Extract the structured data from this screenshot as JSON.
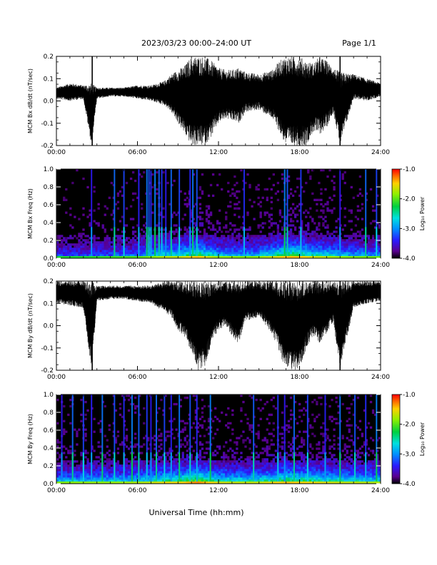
{
  "header": {
    "title": "2023/03/23  00:00–24:00 UT",
    "page": "Page 1/1"
  },
  "footer": {
    "xlabel": "Universal Time (hh:mm)"
  },
  "colors": {
    "background": "#ffffff",
    "axis": "#000000",
    "trace": "#000000",
    "spectrogram_bg": "#000000"
  },
  "chart_data": [
    {
      "type": "line",
      "ylabel": "MCM Bx dB/dt (nT/sec)",
      "xlim": [
        0,
        24
      ],
      "ylim": [
        -0.2,
        0.2
      ],
      "yticks": [
        "-0.2",
        "-0.1",
        "0.0",
        "0.1",
        "0.2"
      ],
      "xticks": [
        "00:00",
        "06:00",
        "12:00",
        "18:00",
        "24:00"
      ],
      "envelope": {
        "x": [
          0,
          1,
          2,
          2.6,
          3,
          4,
          5,
          6,
          7,
          8,
          8.5,
          9,
          9.5,
          10,
          10.5,
          11,
          11.5,
          12,
          12.5,
          13,
          13.5,
          14,
          15,
          16,
          16.5,
          17,
          17.5,
          18,
          18.5,
          19,
          19.5,
          20,
          20.5,
          21,
          22,
          23,
          24
        ],
        "upper": [
          0.06,
          0.08,
          0.07,
          0.08,
          0.06,
          0.06,
          0.06,
          0.07,
          0.07,
          0.09,
          0.12,
          0.14,
          0.16,
          0.2,
          0.2,
          0.2,
          0.18,
          0.15,
          0.14,
          0.14,
          0.15,
          0.13,
          0.12,
          0.14,
          0.18,
          0.2,
          0.2,
          0.2,
          0.18,
          0.17,
          0.2,
          0.18,
          0.15,
          0.13,
          0.12,
          0.1,
          0.08
        ],
        "lower": [
          0.01,
          0.0,
          0.01,
          -0.2,
          0.01,
          0.02,
          0.02,
          0.01,
          0.0,
          -0.02,
          -0.05,
          -0.1,
          -0.15,
          -0.2,
          -0.2,
          -0.2,
          -0.16,
          -0.1,
          -0.08,
          -0.09,
          -0.1,
          -0.05,
          -0.04,
          -0.08,
          -0.14,
          -0.2,
          -0.2,
          -0.2,
          -0.2,
          -0.14,
          -0.15,
          -0.12,
          -0.05,
          -0.2,
          0.01,
          0.0,
          0.02
        ]
      },
      "spikes": [
        {
          "x": 2.65,
          "y": [
            -0.2,
            0.2
          ]
        },
        {
          "x": 21.0,
          "y": [
            -0.2,
            0.2
          ]
        }
      ]
    },
    {
      "type": "heatmap",
      "ylabel": "MCM Bx Freq (Hz)",
      "xlim": [
        0,
        24
      ],
      "ylim": [
        0,
        1.0
      ],
      "yticks": [
        "0.0",
        "0.2",
        "0.4",
        "0.6",
        "0.8",
        "1.0"
      ],
      "xticks": [
        "00:00",
        "06:00",
        "12:00",
        "18:00",
        "24:00"
      ],
      "colorbar": {
        "label": "Log₁₀ Power",
        "ticks": [
          "-1.0",
          "-2.0",
          "-3.0",
          "-4.0"
        ],
        "range": [
          -4.0,
          -1.0
        ]
      },
      "activity": {
        "x": [
          0,
          2,
          4,
          6,
          7,
          8,
          9,
          10,
          10.5,
          11,
          12,
          13,
          14,
          15,
          16,
          17,
          18,
          19,
          20,
          21,
          22,
          24
        ],
        "level": [
          0.35,
          0.35,
          0.4,
          0.45,
          0.55,
          0.7,
          0.7,
          0.85,
          0.9,
          0.8,
          0.6,
          0.6,
          0.55,
          0.6,
          0.75,
          0.9,
          0.9,
          0.75,
          0.7,
          0.6,
          0.55,
          0.5
        ]
      },
      "streaks": [
        2.6,
        4.3,
        5.0,
        6.1,
        6.7,
        6.85,
        7.0,
        7.3,
        7.6,
        7.8,
        8.1,
        8.5,
        9.1,
        9.9,
        10.1,
        10.4,
        13.9,
        16.9,
        17.1,
        18.1,
        21.0,
        22.9,
        23.7
      ]
    },
    {
      "type": "line",
      "ylabel": "MCM By dB/dt (nT/sec)",
      "xlim": [
        0,
        24
      ],
      "ylim": [
        -0.2,
        0.2
      ],
      "yticks": [
        "-0.2",
        "-0.1",
        "0.0",
        "0.1",
        "0.2"
      ],
      "xticks": [
        "00:00",
        "06:00",
        "12:00",
        "18:00",
        "24:00"
      ],
      "envelope": {
        "x": [
          0,
          1,
          2,
          2.6,
          3,
          4,
          5,
          6,
          7,
          8,
          8.5,
          9,
          9.5,
          10,
          10.5,
          11,
          11.5,
          12,
          12.5,
          13,
          13.5,
          14,
          15,
          16,
          16.5,
          17,
          17.5,
          18,
          18.5,
          19,
          19.5,
          20,
          20.5,
          21,
          22,
          23,
          24
        ],
        "upper": [
          0.2,
          0.2,
          0.2,
          0.2,
          0.18,
          0.18,
          0.18,
          0.18,
          0.18,
          0.2,
          0.2,
          0.2,
          0.2,
          0.2,
          0.2,
          0.2,
          0.2,
          0.2,
          0.2,
          0.2,
          0.2,
          0.2,
          0.2,
          0.2,
          0.2,
          0.2,
          0.2,
          0.2,
          0.2,
          0.2,
          0.2,
          0.2,
          0.2,
          0.2,
          0.2,
          0.2,
          0.2
        ],
        "lower": [
          0.1,
          0.09,
          0.08,
          -0.2,
          0.11,
          0.12,
          0.12,
          0.11,
          0.1,
          0.06,
          0.04,
          -0.02,
          -0.05,
          -0.12,
          -0.2,
          -0.18,
          -0.08,
          -0.02,
          0.0,
          -0.05,
          -0.08,
          0.02,
          0.04,
          -0.04,
          -0.12,
          -0.2,
          -0.2,
          -0.2,
          -0.1,
          -0.05,
          -0.08,
          -0.04,
          0.02,
          -0.2,
          0.08,
          0.1,
          0.11
        ]
      },
      "spikes": [
        {
          "x": 2.65,
          "y": [
            -0.2,
            0.2
          ]
        },
        {
          "x": 21.0,
          "y": [
            -0.2,
            0.2
          ]
        }
      ]
    },
    {
      "type": "heatmap",
      "ylabel": "MCM By Freq (Hz)",
      "xlim": [
        0,
        24
      ],
      "ylim": [
        0,
        1.0
      ],
      "yticks": [
        "0.0",
        "0.2",
        "0.4",
        "0.6",
        "0.8",
        "1.0"
      ],
      "xticks": [
        "00:00",
        "06:00",
        "12:00",
        "18:00",
        "24:00"
      ],
      "colorbar": {
        "label": "Log₁₀ Power",
        "ticks": [
          "-1.0",
          "-2.0",
          "-3.0",
          "-4.0"
        ],
        "range": [
          -4.0,
          -1.0
        ]
      },
      "activity": {
        "x": [
          0,
          2,
          4,
          6,
          7,
          8,
          9,
          10,
          10.5,
          11,
          12,
          13,
          14,
          15,
          16,
          17,
          18,
          19,
          20,
          21,
          22,
          24
        ],
        "level": [
          0.55,
          0.6,
          0.6,
          0.65,
          0.7,
          0.8,
          0.8,
          0.95,
          1.0,
          0.9,
          0.75,
          0.7,
          0.7,
          0.7,
          0.8,
          0.9,
          0.85,
          0.8,
          0.75,
          0.7,
          0.7,
          0.65
        ]
      },
      "streaks": [
        0.4,
        1.2,
        2.0,
        2.6,
        3.4,
        4.3,
        5.0,
        5.6,
        6.1,
        6.7,
        7.0,
        7.4,
        8.0,
        8.5,
        9.1,
        9.9,
        10.4,
        11.4,
        14.6,
        16.4,
        16.9,
        17.6,
        18.6,
        19.9,
        21.0,
        22.1,
        22.9,
        23.7
      ]
    }
  ]
}
